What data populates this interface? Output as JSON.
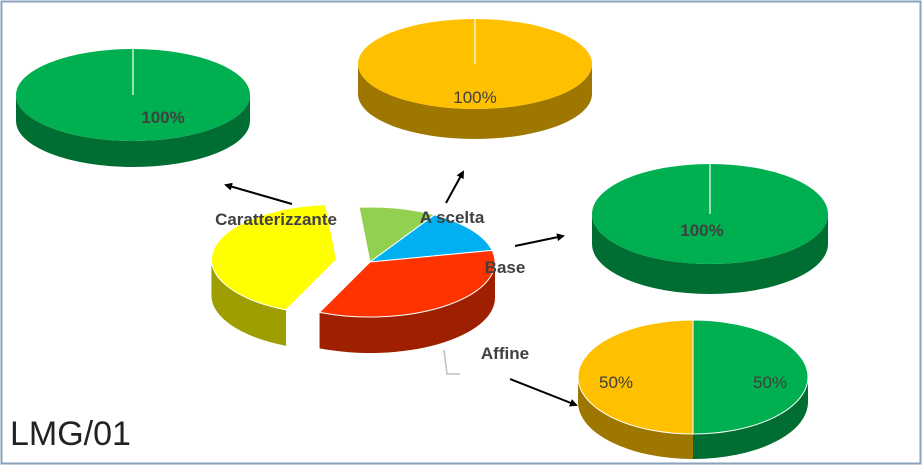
{
  "chart_data": [
    {
      "type": "pie",
      "categories": [
        "A scelta",
        "Base",
        "Affine",
        "Caratterizzante"
      ],
      "values": [
        10,
        13,
        35,
        42
      ],
      "colors": [
        "#92d050",
        "#00b0f0",
        "#ff3300",
        "#ffff00"
      ]
    },
    {
      "type": "pie",
      "values": [
        100
      ],
      "value_labels": [
        "100%"
      ],
      "colors": [
        "#00b050"
      ]
    },
    {
      "type": "pie",
      "values": [
        100
      ],
      "value_labels": [
        "100%"
      ],
      "colors": [
        "#ffc000"
      ]
    },
    {
      "type": "pie",
      "values": [
        100
      ],
      "value_labels": [
        "100%"
      ],
      "colors": [
        "#00b050"
      ]
    },
    {
      "type": "pie",
      "values": [
        50,
        50
      ],
      "value_labels": [
        "50%",
        "50%"
      ],
      "colors": [
        "#00b050",
        "#ffc000"
      ]
    }
  ],
  "label": "LMG/01"
}
